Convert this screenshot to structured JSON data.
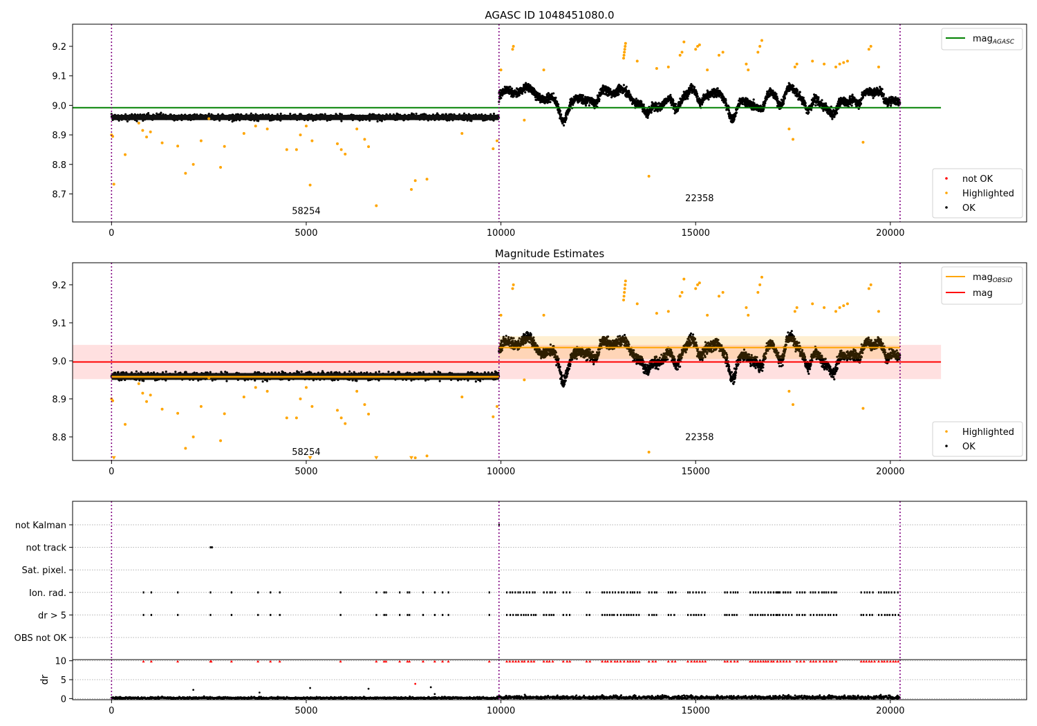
{
  "chart_data": [
    {
      "type": "scatter",
      "title": "AGASC ID 1048451080.0",
      "xlim": [
        -1000,
        23500
      ],
      "ylim": [
        8.605,
        9.275
      ],
      "xticks": [
        0,
        5000,
        10000,
        15000,
        20000
      ],
      "yticks": [
        8.7,
        8.8,
        8.9,
        9.0,
        9.1,
        9.2
      ],
      "vlines_x": [
        0,
        9950,
        20250
      ],
      "hlines": [
        {
          "y": 8.992,
          "x_range": [
            -1000,
            21300
          ],
          "color": "#008000",
          "label": "mag",
          "label_sub": "AGASC"
        }
      ],
      "legend_top": {
        "position": "top-right",
        "entries": [
          {
            "label": "mag",
            "sub": "AGASC",
            "color": "#008000"
          }
        ]
      },
      "legend_bottom": {
        "position": "bottom-right",
        "entries": [
          {
            "label": "not OK",
            "color": "#ff0000"
          },
          {
            "label": "Highlighted",
            "color": "#ffa500"
          },
          {
            "label": "OK",
            "color": "#000000"
          }
        ]
      },
      "segment_labels": [
        {
          "text": "58254",
          "x": 5000,
          "y": 8.632
        },
        {
          "text": "22358",
          "x": 15100,
          "y": 8.675
        }
      ],
      "series": [
        {
          "name": "OK",
          "segment": "obsid 58254",
          "x_range": [
            0,
            9950
          ],
          "mean": 8.96,
          "spread": 0.012
        },
        {
          "name": "OK",
          "segment": "obsid 22358",
          "x_range": [
            9950,
            20250
          ],
          "mean": 9.035,
          "spread": 0.05
        },
        {
          "name": "Highlighted",
          "points": [
            [
              0,
              8.9
            ],
            [
              30,
              8.895
            ],
            [
              60,
              8.733
            ],
            [
              350,
              8.833
            ],
            [
              700,
              8.94
            ],
            [
              800,
              8.915
            ],
            [
              900,
              8.893
            ],
            [
              1000,
              8.91
            ],
            [
              1300,
              8.873
            ],
            [
              1700,
              8.862
            ],
            [
              1900,
              8.77
            ],
            [
              2100,
              8.8
            ],
            [
              2300,
              8.88
            ],
            [
              2500,
              8.955
            ],
            [
              2800,
              8.79
            ],
            [
              2900,
              8.861
            ],
            [
              3400,
              8.905
            ],
            [
              3700,
              8.93
            ],
            [
              4000,
              8.92
            ],
            [
              4500,
              8.85
            ],
            [
              4750,
              8.85
            ],
            [
              4850,
              8.9
            ],
            [
              5000,
              8.93
            ],
            [
              5100,
              8.73
            ],
            [
              5150,
              8.88
            ],
            [
              5800,
              8.87
            ],
            [
              5900,
              8.85
            ],
            [
              6000,
              8.835
            ],
            [
              6300,
              8.92
            ],
            [
              6500,
              8.885
            ],
            [
              6600,
              8.86
            ],
            [
              6800,
              8.66
            ],
            [
              7700,
              8.715
            ],
            [
              7800,
              8.745
            ],
            [
              8100,
              8.75
            ],
            [
              9000,
              8.905
            ],
            [
              9800,
              8.853
            ],
            [
              9900,
              8.88
            ],
            [
              10000,
              9.12
            ],
            [
              10300,
              9.19
            ],
            [
              10320,
              9.2
            ],
            [
              10600,
              8.95
            ],
            [
              11100,
              9.12
            ],
            [
              13150,
              9.16
            ],
            [
              13160,
              9.17
            ],
            [
              13170,
              9.18
            ],
            [
              13180,
              9.19
            ],
            [
              13190,
              9.2
            ],
            [
              13200,
              9.21
            ],
            [
              13500,
              9.15
            ],
            [
              13800,
              8.76
            ],
            [
              14000,
              9.125
            ],
            [
              14300,
              9.13
            ],
            [
              14600,
              9.17
            ],
            [
              14650,
              9.18
            ],
            [
              14700,
              9.215
            ],
            [
              15000,
              9.19
            ],
            [
              15050,
              9.2
            ],
            [
              15100,
              9.205
            ],
            [
              15300,
              9.12
            ],
            [
              15600,
              9.17
            ],
            [
              15700,
              9.18
            ],
            [
              16300,
              9.14
            ],
            [
              16350,
              9.12
            ],
            [
              16600,
              9.18
            ],
            [
              16650,
              9.2
            ],
            [
              16700,
              9.22
            ],
            [
              17400,
              8.92
            ],
            [
              17500,
              8.885
            ],
            [
              17550,
              9.13
            ],
            [
              17600,
              9.14
            ],
            [
              18000,
              9.15
            ],
            [
              18300,
              9.14
            ],
            [
              18600,
              9.13
            ],
            [
              18700,
              9.14
            ],
            [
              18800,
              9.145
            ],
            [
              18900,
              9.15
            ],
            [
              19300,
              8.875
            ],
            [
              19450,
              9.19
            ],
            [
              19500,
              9.2
            ],
            [
              19700,
              9.13
            ]
          ]
        }
      ]
    },
    {
      "type": "scatter",
      "title": "Magnitude Estimates",
      "xlim": [
        -1000,
        23500
      ],
      "ylim": [
        8.738,
        9.258
      ],
      "xticks": [
        0,
        5000,
        10000,
        15000,
        20000
      ],
      "yticks": [
        8.8,
        8.9,
        9.0,
        9.1,
        9.2
      ],
      "vlines_x": [
        0,
        9950,
        20250
      ],
      "hlines": [
        {
          "y": 8.997,
          "x_range": [
            -1000,
            21300
          ],
          "color": "#ff0000",
          "label": "mag",
          "band": [
            8.952,
            9.042
          ]
        },
        {
          "y": 8.958,
          "x_range": [
            0,
            9950
          ],
          "color": "#ffa500",
          "label": "mag",
          "label_sub": "OBSID"
        },
        {
          "y": 9.035,
          "x_range": [
            9950,
            20250
          ],
          "color": "#ffa500"
        }
      ],
      "legend_top": {
        "position": "top-right",
        "entries": [
          {
            "label": "mag",
            "sub": "OBSID",
            "color": "#ffa500"
          },
          {
            "label": "mag",
            "color": "#ff0000"
          }
        ]
      },
      "legend_bottom": {
        "position": "bottom-right",
        "entries": [
          {
            "label": "Highlighted",
            "color": "#ffa500"
          },
          {
            "label": "OK",
            "color": "#000000"
          }
        ]
      },
      "segment_labels": [
        {
          "text": "58254",
          "x": 5000,
          "y": 8.753
        },
        {
          "text": "22358",
          "x": 15100,
          "y": 8.792
        }
      ]
    },
    {
      "type": "scatter",
      "title": "",
      "xlim": [
        -1000,
        23500
      ],
      "xticks": [
        0,
        5000,
        10000,
        15000,
        20000
      ],
      "vlines_x": [
        0,
        9950,
        20250
      ],
      "categories": [
        "not Kalman",
        "not track",
        "Sat. pixel.",
        "Ion. rad.",
        "dr > 5",
        "OBS not OK"
      ],
      "flag_events": {
        "not Kalman": [
          9950
        ],
        "not track": [
          2540,
          2580
        ],
        "Sat. pixel.": [],
        "Ion. rad.": [
          820,
          1020,
          1700,
          2540,
          3080,
          3760,
          4080,
          4320,
          5880,
          6800,
          7000,
          7050,
          7400,
          7600,
          7650,
          8000,
          8300,
          8500,
          8650,
          9700
        ],
        "dr > 5": [
          820,
          1020,
          1700,
          2540,
          3080,
          3760,
          4080,
          4320,
          5880,
          6800,
          7000,
          7050,
          7400,
          7600,
          7650,
          8000,
          8300,
          8500,
          8650,
          9700
        ],
        "OBS not OK": []
      },
      "flag_clusters": [
        [
          10150,
          10900
        ],
        [
          11100,
          11400
        ],
        [
          11600,
          11800
        ],
        [
          12200,
          12300
        ],
        [
          12600,
          13600
        ],
        [
          13800,
          14000
        ],
        [
          14300,
          14500
        ],
        [
          14800,
          15300
        ],
        [
          15750,
          16100
        ],
        [
          16400,
          16950
        ],
        [
          17000,
          17150
        ],
        [
          17100,
          17500
        ],
        [
          17600,
          17850
        ],
        [
          17950,
          18650
        ],
        [
          19250,
          19600
        ],
        [
          19700,
          20250
        ]
      ]
    },
    {
      "type": "scatter",
      "title": "",
      "ylabel": "dr",
      "xlim": [
        -1000,
        23500
      ],
      "ylim": [
        -0.3,
        10.3
      ],
      "xticks": [
        0,
        5000,
        10000,
        15000,
        20000
      ],
      "yticks": [
        0,
        5,
        10
      ],
      "vlines_x": [
        0,
        9950,
        20250
      ],
      "clipped_y": 10,
      "outliers": [
        [
          2100,
          2.3
        ],
        [
          3800,
          1.6
        ],
        [
          5100,
          2.8
        ],
        [
          6600,
          2.6
        ],
        [
          7800,
          3.9
        ],
        [
          8200,
          3.0
        ],
        [
          8300,
          1.2
        ]
      ]
    }
  ]
}
